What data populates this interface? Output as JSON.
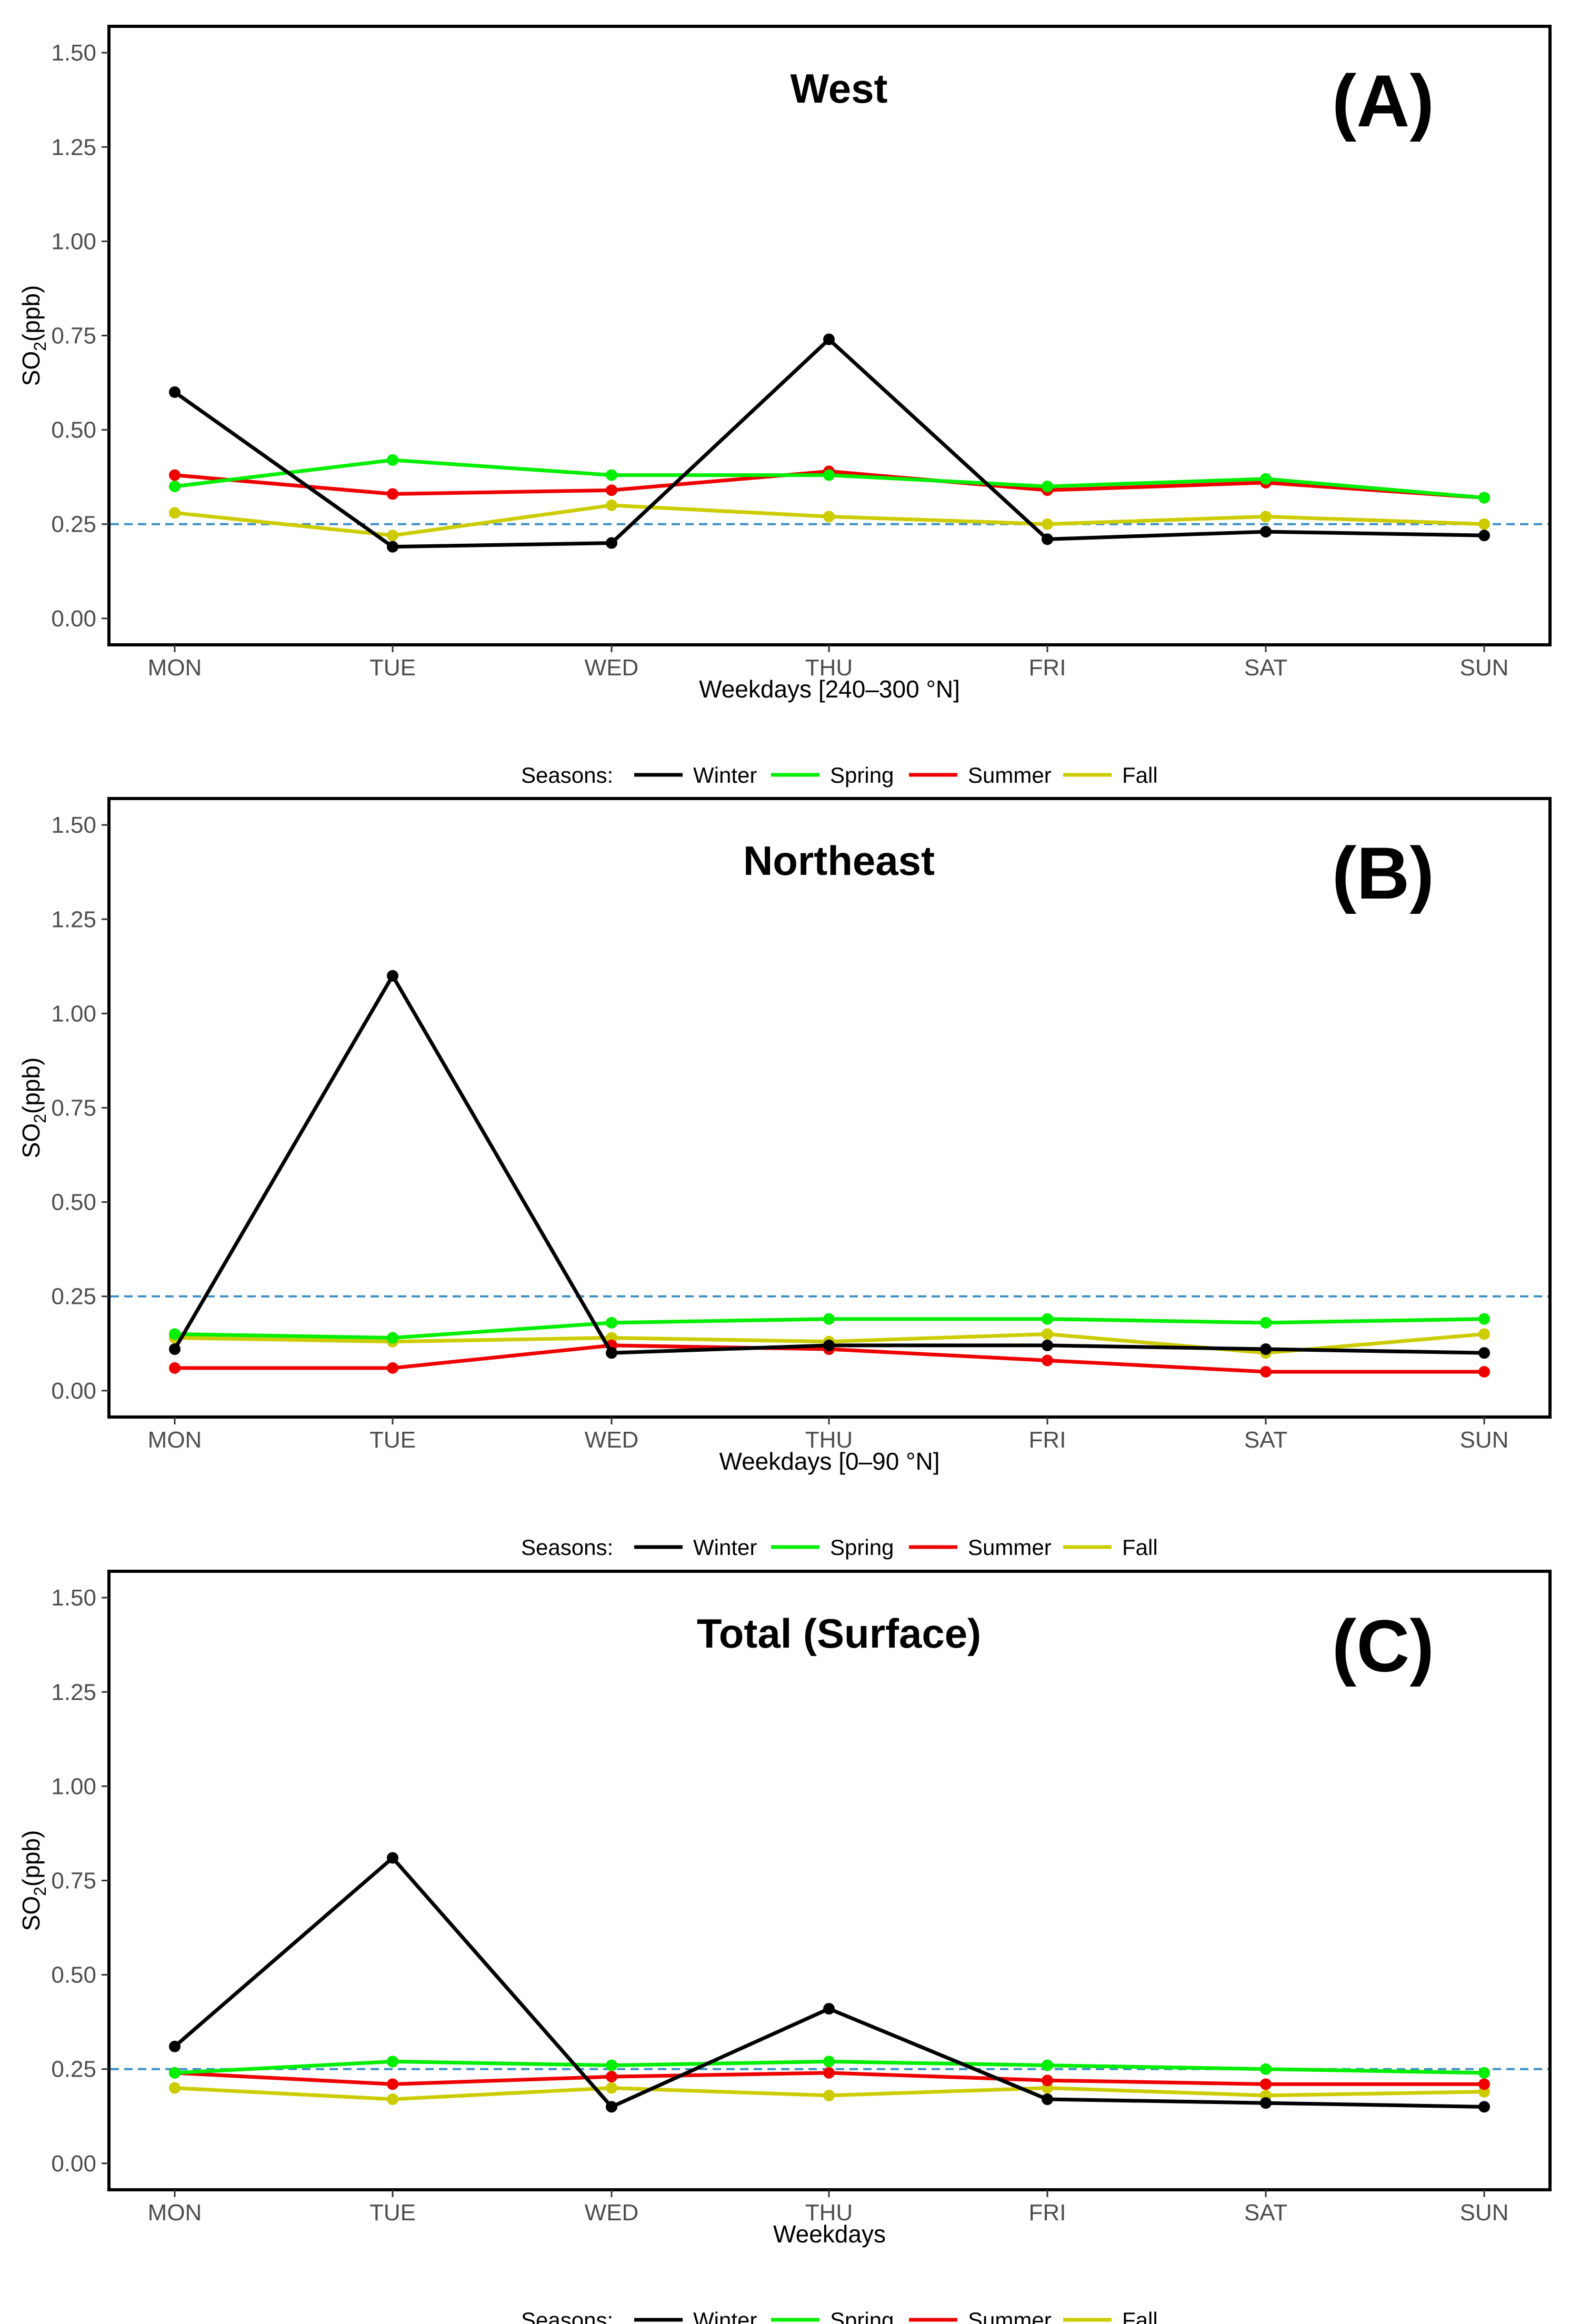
{
  "chart_data": [
    {
      "type": "line",
      "title": "West",
      "panel_label": "(A)",
      "xlabel": "Weekdays [240–300 °N]",
      "ylabel_main": "SO",
      "ylabel_sub": "2",
      "ylabel_rest": "(ppb)",
      "categories": [
        "MON",
        "TUE",
        "WED",
        "THU",
        "FRI",
        "SAT",
        "SUN"
      ],
      "ylim": [
        -0.07,
        1.57
      ],
      "yticks": [
        0.0,
        0.25,
        0.5,
        0.75,
        1.0,
        1.25,
        1.5
      ],
      "ytick_labels": [
        "0.00",
        "0.25",
        "0.50",
        "0.75",
        "1.00",
        "1.25",
        "1.50"
      ],
      "reference_line": 0.25,
      "series": [
        {
          "name": "Winter",
          "color": "#000000",
          "values": [
            0.6,
            0.19,
            0.2,
            0.74,
            0.21,
            0.23,
            0.22
          ]
        },
        {
          "name": "Spring",
          "color": "#00ee00",
          "values": [
            0.35,
            0.42,
            0.38,
            0.38,
            0.35,
            0.37,
            0.32
          ]
        },
        {
          "name": "Summer",
          "color": "#ee0000",
          "values": [
            0.38,
            0.33,
            0.34,
            0.39,
            0.34,
            0.36,
            0.32
          ]
        },
        {
          "name": "Fall",
          "color": "#cccc00",
          "values": [
            0.28,
            0.22,
            0.3,
            0.27,
            0.25,
            0.27,
            0.25
          ]
        }
      ],
      "legend_title": "Seasons:",
      "legend": [
        "Winter",
        "Spring",
        "Summer",
        "Fall"
      ]
    },
    {
      "type": "line",
      "title": "Northeast",
      "panel_label": "(B)",
      "xlabel": "Weekdays [0–90 °N]",
      "ylabel_main": "SO",
      "ylabel_sub": "2",
      "ylabel_rest": "(ppb)",
      "categories": [
        "MON",
        "TUE",
        "WED",
        "THU",
        "FRI",
        "SAT",
        "SUN"
      ],
      "ylim": [
        -0.07,
        1.57
      ],
      "yticks": [
        0.0,
        0.25,
        0.5,
        0.75,
        1.0,
        1.25,
        1.5
      ],
      "ytick_labels": [
        "0.00",
        "0.25",
        "0.50",
        "0.75",
        "1.00",
        "1.25",
        "1.50"
      ],
      "reference_line": 0.25,
      "series": [
        {
          "name": "Winter",
          "color": "#000000",
          "values": [
            0.11,
            1.1,
            0.1,
            0.12,
            0.12,
            0.11,
            0.1
          ]
        },
        {
          "name": "Spring",
          "color": "#00ee00",
          "values": [
            0.15,
            0.14,
            0.18,
            0.19,
            0.19,
            0.18,
            0.19
          ]
        },
        {
          "name": "Summer",
          "color": "#ee0000",
          "values": [
            0.06,
            0.06,
            0.12,
            0.11,
            0.08,
            0.05,
            0.05
          ]
        },
        {
          "name": "Fall",
          "color": "#cccc00",
          "values": [
            0.14,
            0.13,
            0.14,
            0.13,
            0.15,
            0.1,
            0.15
          ]
        }
      ],
      "legend_title": "Seasons:",
      "legend": [
        "Winter",
        "Spring",
        "Summer",
        "Fall"
      ]
    },
    {
      "type": "line",
      "title": "Total (Surface)",
      "panel_label": "(C)",
      "xlabel": "Weekdays",
      "ylabel_main": "SO",
      "ylabel_sub": "2",
      "ylabel_rest": "(ppb)",
      "categories": [
        "MON",
        "TUE",
        "WED",
        "THU",
        "FRI",
        "SAT",
        "SUN"
      ],
      "ylim": [
        -0.07,
        1.57
      ],
      "yticks": [
        0.0,
        0.25,
        0.5,
        0.75,
        1.0,
        1.25,
        1.5
      ],
      "ytick_labels": [
        "0.00",
        "0.25",
        "0.50",
        "0.75",
        "1.00",
        "1.25",
        "1.50"
      ],
      "reference_line": 0.25,
      "series": [
        {
          "name": "Winter",
          "color": "#000000",
          "values": [
            0.31,
            0.81,
            0.15,
            0.41,
            0.17,
            0.16,
            0.15
          ]
        },
        {
          "name": "Spring",
          "color": "#00ee00",
          "values": [
            0.24,
            0.27,
            0.26,
            0.27,
            0.26,
            0.25,
            0.24
          ]
        },
        {
          "name": "Summer",
          "color": "#ee0000",
          "values": [
            0.24,
            0.21,
            0.23,
            0.24,
            0.22,
            0.21,
            0.21
          ]
        },
        {
          "name": "Fall",
          "color": "#cccc00",
          "values": [
            0.2,
            0.17,
            0.2,
            0.18,
            0.2,
            0.18,
            0.19
          ]
        }
      ],
      "legend_title": "Seasons:",
      "legend": [
        "Winter",
        "Spring",
        "Summer",
        "Fall"
      ]
    }
  ]
}
